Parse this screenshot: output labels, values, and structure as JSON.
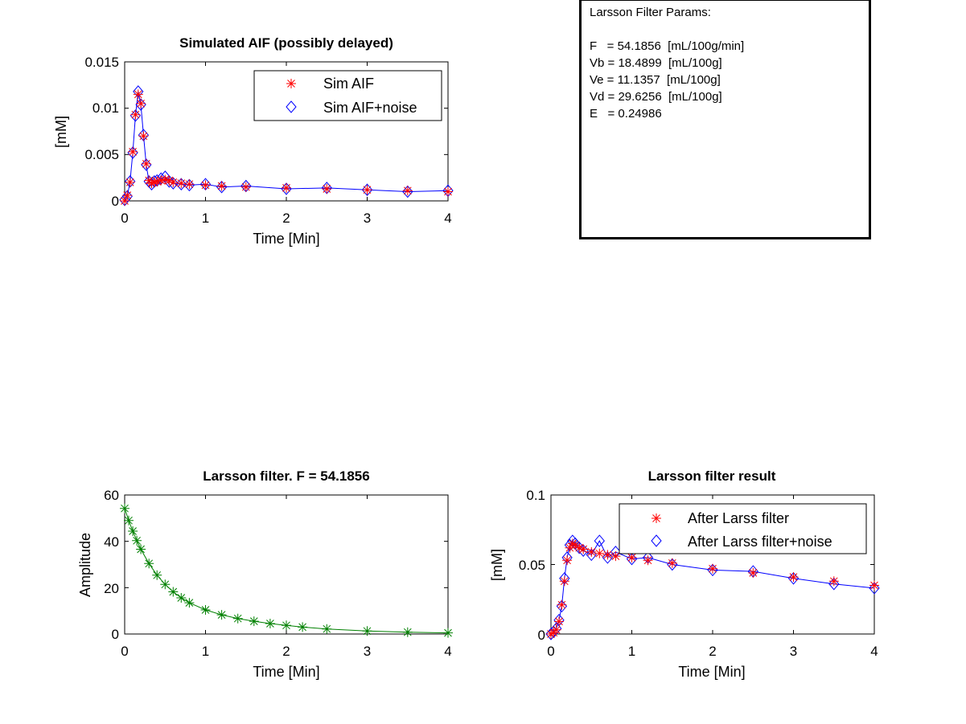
{
  "params": {
    "title": "Larsson Filter Params:",
    "lines": [
      "F   = 54.1856  [mL/100g/min]",
      "Vb = 18.4899  [mL/100g]",
      "Ve = 11.1357  [mL/100g]",
      "Vd = 29.6256  [mL/100g]",
      "E   = 0.24986"
    ]
  },
  "colors": {
    "red": "#ff0000",
    "blue": "#0000ff",
    "green": "#008000",
    "axis": "#000000"
  },
  "chart_data": [
    {
      "type": "line",
      "title": "Simulated AIF (possibly delayed)",
      "xlabel": "Time [Min]",
      "ylabel": "[mM]",
      "xlim": [
        0,
        4
      ],
      "ylim": [
        0,
        0.015
      ],
      "xticks": [
        "0",
        "1",
        "2",
        "3",
        "4"
      ],
      "yticks": [
        "0",
        "0.005",
        "0.01",
        "0.015"
      ],
      "legend_position": "top-right",
      "series": [
        {
          "name": "Sim AIF",
          "marker": "asterisk",
          "color": "#ff0000",
          "x": [
            0,
            0.033,
            0.067,
            0.1,
            0.133,
            0.167,
            0.2,
            0.233,
            0.267,
            0.3,
            0.333,
            0.367,
            0.4,
            0.45,
            0.5,
            0.55,
            0.6,
            0.7,
            0.8,
            1.0,
            1.2,
            1.5,
            2.0,
            2.5,
            3.0,
            3.5,
            4.0
          ],
          "y": [
            0,
            0.0006,
            0.002,
            0.0053,
            0.0093,
            0.0115,
            0.0105,
            0.007,
            0.004,
            0.0022,
            0.0019,
            0.002,
            0.0021,
            0.0022,
            0.0023,
            0.0022,
            0.002,
            0.0019,
            0.0018,
            0.0017,
            0.0016,
            0.0015,
            0.0014,
            0.0013,
            0.0012,
            0.0011,
            0.001
          ]
        },
        {
          "name": "Sim AIF+noise",
          "marker": "diamond",
          "color": "#0000ff",
          "x": [
            0,
            0.033,
            0.067,
            0.1,
            0.133,
            0.167,
            0.2,
            0.233,
            0.267,
            0.3,
            0.333,
            0.367,
            0.4,
            0.45,
            0.5,
            0.55,
            0.6,
            0.7,
            0.8,
            1.0,
            1.2,
            1.5,
            2.0,
            2.5,
            3.0,
            3.5,
            4.0
          ],
          "y": [
            0.0001,
            0.0005,
            0.0021,
            0.0052,
            0.0092,
            0.0118,
            0.0104,
            0.0071,
            0.0039,
            0.0021,
            0.0018,
            0.0021,
            0.0022,
            0.0024,
            0.0026,
            0.0021,
            0.0019,
            0.0018,
            0.0017,
            0.0018,
            0.0015,
            0.0016,
            0.0013,
            0.0014,
            0.0012,
            0.001,
            0.0011
          ]
        }
      ]
    },
    {
      "type": "line",
      "title": "Larsson filter. F = 54.1856",
      "xlabel": "Time [Min]",
      "ylabel": "Amplitude",
      "xlim": [
        0,
        4
      ],
      "ylim": [
        0,
        60
      ],
      "xticks": [
        "0",
        "1",
        "2",
        "3",
        "4"
      ],
      "yticks": [
        "0",
        "20",
        "40",
        "60"
      ],
      "series": [
        {
          "marker": "asterisk",
          "color": "#008000",
          "x": [
            0,
            0.05,
            0.1,
            0.15,
            0.2,
            0.3,
            0.4,
            0.5,
            0.6,
            0.7,
            0.8,
            1.0,
            1.2,
            1.4,
            1.6,
            1.8,
            2.0,
            2.2,
            2.5,
            3.0,
            3.5,
            4.0
          ],
          "y": [
            54.2,
            49.0,
            44.4,
            40.3,
            36.6,
            30.4,
            25.4,
            21.4,
            18.2,
            15.6,
            13.5,
            10.4,
            8.3,
            6.7,
            5.5,
            4.5,
            3.7,
            3.0,
            2.2,
            1.3,
            0.8,
            0.5
          ]
        }
      ]
    },
    {
      "type": "line",
      "title": "Larsson filter result",
      "xlabel": "Time [Min]",
      "ylabel": "[mM]",
      "xlim": [
        0,
        4
      ],
      "ylim": [
        0,
        0.1
      ],
      "xticks": [
        "0",
        "1",
        "2",
        "3",
        "4"
      ],
      "yticks": [
        "0",
        "0.05",
        "0.1"
      ],
      "legend_position": "top-right",
      "series": [
        {
          "name": "After Larss filter",
          "marker": "asterisk",
          "color": "#ff0000",
          "x": [
            0,
            0.033,
            0.067,
            0.1,
            0.133,
            0.167,
            0.2,
            0.233,
            0.267,
            0.3,
            0.35,
            0.4,
            0.5,
            0.6,
            0.7,
            0.8,
            1.0,
            1.2,
            1.5,
            2.0,
            2.5,
            3.0,
            3.5,
            4.0
          ],
          "y": [
            0,
            0.001,
            0.003,
            0.009,
            0.021,
            0.038,
            0.053,
            0.062,
            0.065,
            0.064,
            0.062,
            0.061,
            0.059,
            0.058,
            0.057,
            0.056,
            0.055,
            0.053,
            0.051,
            0.047,
            0.044,
            0.041,
            0.038,
            0.035
          ]
        },
        {
          "name": "After Larss filter+noise",
          "marker": "diamond",
          "color": "#0000ff",
          "x": [
            0,
            0.033,
            0.067,
            0.1,
            0.133,
            0.167,
            0.2,
            0.233,
            0.267,
            0.3,
            0.35,
            0.4,
            0.5,
            0.6,
            0.7,
            0.8,
            1.0,
            1.2,
            1.5,
            2.0,
            2.5,
            3.0,
            3.5,
            4.0
          ],
          "y": [
            0,
            0.0015,
            0.004,
            0.01,
            0.02,
            0.04,
            0.055,
            0.064,
            0.067,
            0.065,
            0.062,
            0.06,
            0.057,
            0.067,
            0.055,
            0.059,
            0.054,
            0.055,
            0.05,
            0.046,
            0.045,
            0.04,
            0.036,
            0.033
          ]
        }
      ]
    }
  ]
}
